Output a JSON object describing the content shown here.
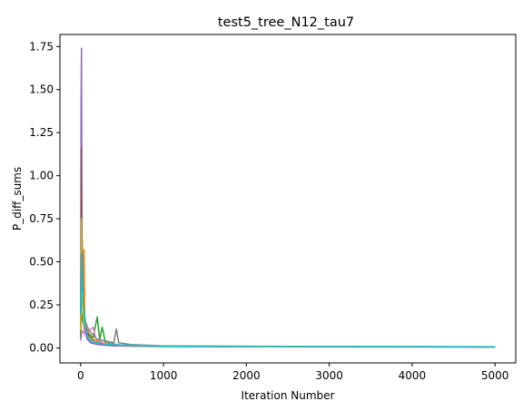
{
  "chart_data": {
    "type": "line",
    "title": "test5_tree_N12_tau7",
    "xlabel": "Iteration Number",
    "ylabel": "P_diff_sums",
    "xlim": [
      -250,
      5250
    ],
    "ylim": [
      -0.087,
      1.82
    ],
    "xticks": [
      0,
      1000,
      2000,
      3000,
      4000,
      5000
    ],
    "xtick_labels": [
      "0",
      "1000",
      "2000",
      "3000",
      "4000",
      "5000"
    ],
    "yticks": [
      0.0,
      0.25,
      0.5,
      0.75,
      1.0,
      1.25,
      1.5,
      1.75
    ],
    "ytick_labels": [
      "0.00",
      "0.25",
      "0.50",
      "0.75",
      "1.00",
      "1.25",
      "1.50",
      "1.75"
    ],
    "grid": false,
    "legend": "none",
    "series": [
      {
        "color": "#1f77b4",
        "x": [
          0,
          10,
          20,
          35,
          50,
          80,
          120,
          200,
          400,
          1000,
          3000,
          5000
        ],
        "y": [
          0.05,
          0.42,
          0.3,
          0.18,
          0.1,
          0.06,
          0.03,
          0.02,
          0.012,
          0.008,
          0.006,
          0.005
        ]
      },
      {
        "color": "#ff7f0e",
        "x": [
          0,
          10,
          20,
          30,
          40,
          50,
          60,
          80,
          100,
          150,
          200,
          250,
          300,
          400,
          500,
          1000,
          3000,
          5000
        ],
        "y": [
          0.08,
          0.35,
          0.62,
          0.3,
          0.57,
          0.2,
          0.12,
          0.1,
          0.08,
          0.05,
          0.04,
          0.03,
          0.02,
          0.015,
          0.012,
          0.01,
          0.007,
          0.006
        ]
      },
      {
        "color": "#2ca02c",
        "x": [
          0,
          10,
          30,
          60,
          100,
          150,
          200,
          230,
          260,
          300,
          500,
          1000,
          3000,
          5000
        ],
        "y": [
          0.06,
          0.2,
          0.15,
          0.1,
          0.08,
          0.06,
          0.18,
          0.05,
          0.12,
          0.03,
          0.015,
          0.01,
          0.007,
          0.006
        ]
      },
      {
        "color": "#d62728",
        "x": [
          0,
          8,
          16,
          30,
          60,
          100,
          200,
          400,
          1000,
          3000,
          5000
        ],
        "y": [
          0.1,
          0.78,
          0.45,
          0.2,
          0.12,
          0.06,
          0.03,
          0.015,
          0.01,
          0.007,
          0.006
        ]
      },
      {
        "color": "#9467bd",
        "x": [
          0,
          5,
          10,
          15,
          20,
          30,
          40,
          60,
          80,
          100,
          150,
          200,
          300,
          500,
          1000,
          3000,
          5000
        ],
        "y": [
          0.15,
          1.4,
          1.74,
          0.9,
          0.4,
          0.2,
          0.12,
          0.08,
          0.05,
          0.04,
          0.03,
          0.02,
          0.015,
          0.012,
          0.01,
          0.007,
          0.006
        ]
      },
      {
        "color": "#8c564b",
        "x": [
          0,
          8,
          15,
          25,
          40,
          60,
          90,
          120,
          200,
          500,
          1000,
          3000,
          5000
        ],
        "y": [
          0.1,
          1.16,
          0.6,
          0.35,
          0.2,
          0.12,
          0.08,
          0.05,
          0.03,
          0.015,
          0.01,
          0.007,
          0.006
        ]
      },
      {
        "color": "#e377c2",
        "x": [
          0,
          20,
          50,
          100,
          150,
          180,
          220,
          300,
          500,
          1000,
          3000,
          5000
        ],
        "y": [
          0.04,
          0.1,
          0.08,
          0.1,
          0.12,
          0.06,
          0.04,
          0.025,
          0.015,
          0.01,
          0.007,
          0.006
        ]
      },
      {
        "color": "#7f7f7f",
        "x": [
          0,
          15,
          30,
          60,
          100,
          200,
          400,
          430,
          460,
          600,
          1000,
          3000,
          5000
        ],
        "y": [
          0.08,
          0.4,
          0.25,
          0.15,
          0.1,
          0.05,
          0.03,
          0.11,
          0.03,
          0.02,
          0.012,
          0.008,
          0.007
        ]
      },
      {
        "color": "#bcbd22",
        "x": [
          0,
          8,
          14,
          20,
          30,
          50,
          80,
          120,
          200,
          500,
          1000,
          3000,
          5000
        ],
        "y": [
          0.1,
          0.75,
          0.5,
          0.3,
          0.2,
          0.12,
          0.07,
          0.05,
          0.03,
          0.015,
          0.01,
          0.007,
          0.006
        ]
      },
      {
        "color": "#17becf",
        "x": [
          0,
          10,
          20,
          30,
          45,
          60,
          80,
          100,
          150,
          200,
          300,
          1000,
          3000,
          5000
        ],
        "y": [
          0.2,
          0.55,
          0.35,
          0.28,
          0.2,
          0.1,
          0.07,
          0.05,
          0.04,
          0.03,
          0.02,
          0.01,
          0.007,
          0.006
        ]
      }
    ]
  }
}
